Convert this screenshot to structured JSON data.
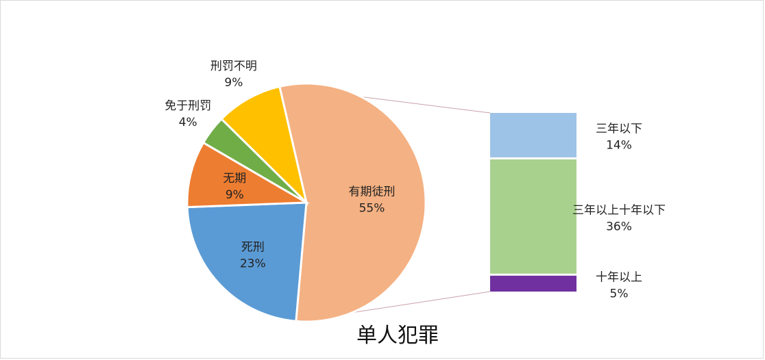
{
  "chart_data": {
    "type": "pie",
    "title": "单人犯罪",
    "slices": [
      {
        "label": "有期徒刑",
        "value": 55,
        "value_label": "55%",
        "color": "#f4b183"
      },
      {
        "label": "死刑",
        "value": 23,
        "value_label": "23%",
        "color": "#5b9bd5"
      },
      {
        "label": "无期",
        "value": 9,
        "value_label": "9%",
        "color": "#ed7d31"
      },
      {
        "label": "免于刑罚",
        "value": 4,
        "value_label": "4%",
        "color": "#70ad47"
      },
      {
        "label": "刑罚不明",
        "value": 9,
        "value_label": "9%",
        "color": "#ffc000"
      }
    ],
    "breakdown": {
      "of": "有期徒刑",
      "segments": [
        {
          "label": "三年以下",
          "value": 14,
          "value_label": "14%",
          "color": "#9dc3e6"
        },
        {
          "label": "三年以上十年以下",
          "value": 36,
          "value_label": "36%",
          "color": "#a9d18e"
        },
        {
          "label": "十年以上",
          "value": 5,
          "value_label": "5%",
          "color": "#7030a0"
        }
      ]
    }
  }
}
